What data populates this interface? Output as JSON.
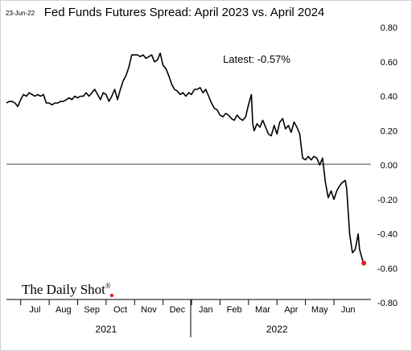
{
  "date_stamp": "23-Jun-22",
  "chart_data": {
    "type": "line",
    "title": "Fed Funds Futures Spread: April 2023 vs. April 2024",
    "annotation": "Latest:  -0.57%",
    "logo": "The Daily Shot",
    "logo_mark": "®",
    "ylim": [
      -0.8,
      0.8
    ],
    "y_ticks": [
      "0.80",
      "0.60",
      "0.40",
      "0.20",
      "0.00",
      "-0.20",
      "-0.40",
      "-0.60",
      "-0.80"
    ],
    "y_tick_values": [
      0.8,
      0.6,
      0.4,
      0.2,
      0.0,
      -0.2,
      -0.4,
      -0.6,
      -0.8
    ],
    "x_month_labels": [
      "Jul",
      "Aug",
      "Sep",
      "Oct",
      "Nov",
      "Dec",
      "Jan",
      "Feb",
      "Mar",
      "Apr",
      "May",
      "Jun"
    ],
    "x_month_centers": [
      1.5,
      2.5,
      3.5,
      4.5,
      5.5,
      6.5,
      7.5,
      8.5,
      9.5,
      10.5,
      11.5,
      12.5
    ],
    "x_month_boundaries": [
      1,
      2,
      3,
      4,
      5,
      6,
      7,
      8,
      9,
      10,
      11,
      12
    ],
    "x_year_labels": [
      "2021",
      "2022"
    ],
    "x_year_centers": [
      4.0,
      10.0
    ],
    "year_divider": 7,
    "xlim": [
      0.5,
      13.3
    ],
    "grid": false,
    "zero_line": true,
    "latest_marker_color": "#e0201c",
    "line_color": "#000000",
    "series": [
      {
        "values": [
          [
            0.5,
            0.36
          ],
          [
            0.6,
            0.37
          ],
          [
            0.7,
            0.37
          ],
          [
            0.8,
            0.36
          ],
          [
            0.9,
            0.34
          ],
          [
            1.0,
            0.38
          ],
          [
            1.1,
            0.41
          ],
          [
            1.2,
            0.4
          ],
          [
            1.3,
            0.42
          ],
          [
            1.4,
            0.41
          ],
          [
            1.5,
            0.4
          ],
          [
            1.6,
            0.41
          ],
          [
            1.7,
            0.4
          ],
          [
            1.8,
            0.41
          ],
          [
            1.9,
            0.36
          ],
          [
            2.0,
            0.36
          ],
          [
            2.1,
            0.35
          ],
          [
            2.2,
            0.36
          ],
          [
            2.3,
            0.36
          ],
          [
            2.4,
            0.37
          ],
          [
            2.5,
            0.37
          ],
          [
            2.6,
            0.38
          ],
          [
            2.7,
            0.39
          ],
          [
            2.8,
            0.38
          ],
          [
            2.9,
            0.4
          ],
          [
            3.0,
            0.39
          ],
          [
            3.1,
            0.4
          ],
          [
            3.2,
            0.4
          ],
          [
            3.3,
            0.42
          ],
          [
            3.4,
            0.4
          ],
          [
            3.5,
            0.42
          ],
          [
            3.6,
            0.44
          ],
          [
            3.7,
            0.41
          ],
          [
            3.8,
            0.38
          ],
          [
            3.9,
            0.42
          ],
          [
            4.0,
            0.41
          ],
          [
            4.1,
            0.37
          ],
          [
            4.2,
            0.4
          ],
          [
            4.3,
            0.44
          ],
          [
            4.4,
            0.38
          ],
          [
            4.5,
            0.44
          ],
          [
            4.6,
            0.49
          ],
          [
            4.7,
            0.52
          ],
          [
            4.8,
            0.57
          ],
          [
            4.9,
            0.64
          ],
          [
            5.0,
            0.64
          ],
          [
            5.1,
            0.64
          ],
          [
            5.2,
            0.63
          ],
          [
            5.3,
            0.64
          ],
          [
            5.4,
            0.62
          ],
          [
            5.5,
            0.63
          ],
          [
            5.6,
            0.64
          ],
          [
            5.7,
            0.6
          ],
          [
            5.8,
            0.61
          ],
          [
            5.9,
            0.65
          ],
          [
            6.0,
            0.58
          ],
          [
            6.1,
            0.56
          ],
          [
            6.2,
            0.52
          ],
          [
            6.3,
            0.47
          ],
          [
            6.4,
            0.44
          ],
          [
            6.5,
            0.43
          ],
          [
            6.6,
            0.41
          ],
          [
            6.7,
            0.42
          ],
          [
            6.8,
            0.4
          ],
          [
            6.9,
            0.42
          ],
          [
            7.0,
            0.41
          ],
          [
            7.1,
            0.44
          ],
          [
            7.2,
            0.44
          ],
          [
            7.3,
            0.45
          ],
          [
            7.4,
            0.42
          ],
          [
            7.5,
            0.44
          ],
          [
            7.6,
            0.4
          ],
          [
            7.7,
            0.36
          ],
          [
            7.8,
            0.33
          ],
          [
            7.9,
            0.32
          ],
          [
            8.0,
            0.29
          ],
          [
            8.1,
            0.28
          ],
          [
            8.2,
            0.3
          ],
          [
            8.3,
            0.29
          ],
          [
            8.4,
            0.27
          ],
          [
            8.5,
            0.26
          ],
          [
            8.6,
            0.29
          ],
          [
            8.7,
            0.27
          ],
          [
            8.8,
            0.26
          ],
          [
            8.9,
            0.28
          ],
          [
            9.0,
            0.35
          ],
          [
            9.1,
            0.41
          ],
          [
            9.15,
            0.24
          ],
          [
            9.2,
            0.2
          ],
          [
            9.3,
            0.24
          ],
          [
            9.4,
            0.22
          ],
          [
            9.5,
            0.26
          ],
          [
            9.6,
            0.22
          ],
          [
            9.7,
            0.18
          ],
          [
            9.8,
            0.17
          ],
          [
            9.9,
            0.23
          ],
          [
            10.0,
            0.18
          ],
          [
            10.1,
            0.25
          ],
          [
            10.2,
            0.27
          ],
          [
            10.3,
            0.21
          ],
          [
            10.4,
            0.23
          ],
          [
            10.5,
            0.19
          ],
          [
            10.6,
            0.25
          ],
          [
            10.7,
            0.22
          ],
          [
            10.8,
            0.18
          ],
          [
            10.9,
            0.04
          ],
          [
            11.0,
            0.03
          ],
          [
            11.1,
            0.05
          ],
          [
            11.2,
            0.03
          ],
          [
            11.3,
            0.05
          ],
          [
            11.4,
            0.04
          ],
          [
            11.5,
            0.0
          ],
          [
            11.6,
            0.04
          ],
          [
            11.7,
            -0.1
          ],
          [
            11.8,
            -0.19
          ],
          [
            11.9,
            -0.15
          ],
          [
            12.0,
            -0.2
          ],
          [
            12.1,
            -0.15
          ],
          [
            12.2,
            -0.12
          ],
          [
            12.3,
            -0.1
          ],
          [
            12.4,
            -0.09
          ],
          [
            12.45,
            -0.14
          ],
          [
            12.55,
            -0.4
          ],
          [
            12.65,
            -0.51
          ],
          [
            12.75,
            -0.49
          ],
          [
            12.85,
            -0.4
          ],
          [
            12.9,
            -0.49
          ],
          [
            13.0,
            -0.55
          ],
          [
            13.05,
            -0.57
          ]
        ]
      }
    ]
  }
}
